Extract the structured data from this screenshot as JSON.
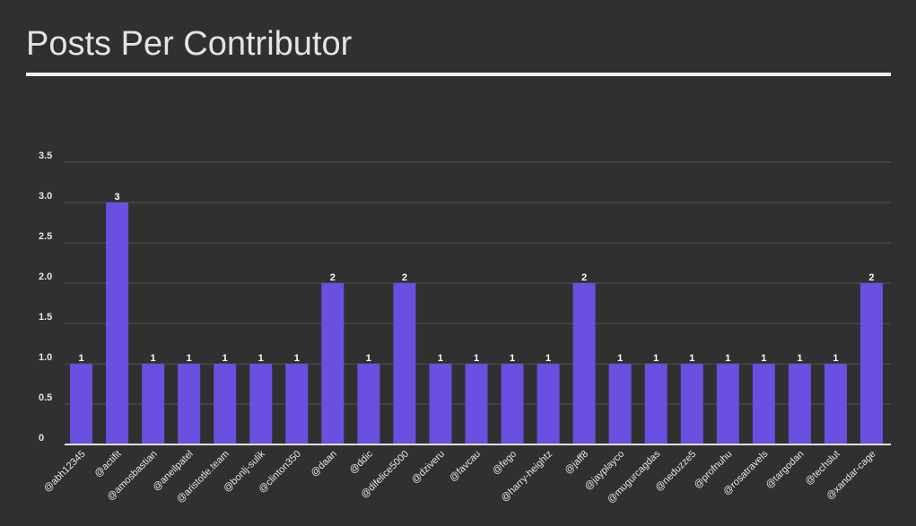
{
  "title": "Posts Per Contributor",
  "colors": {
    "background": "#303030",
    "bar": "#6a4fe0",
    "grid": "#555555",
    "text": "#e6e6e6",
    "axis": "#e0e0e0"
  },
  "chart_data": {
    "type": "bar",
    "title": "Posts Per Contributor",
    "xlabel": "",
    "ylabel": "",
    "ylim": [
      0,
      3.5
    ],
    "yticks": [
      "0",
      "0.5",
      "1.0",
      "1.5",
      "2.0",
      "2.5",
      "3.0",
      "3.5"
    ],
    "grid": true,
    "legend": "none",
    "categories": [
      "@abh12345",
      "@actifit",
      "@amosbastian",
      "@aneilpatel",
      "@aristotle.team",
      "@bonlj-sulik",
      "@clinton350",
      "@daan",
      "@ddic",
      "@difelice5000",
      "@dziveru",
      "@favcau",
      "@fego",
      "@harry-heightz",
      "@jaff8",
      "@jayplayco",
      "@mugurcagdas",
      "@neduzze5",
      "@profnuhu",
      "@rosatravels",
      "@targodan",
      "@techslut",
      "@xandar-cage"
    ],
    "values": [
      1,
      3,
      1,
      1,
      1,
      1,
      1,
      2,
      1,
      2,
      1,
      1,
      1,
      1,
      2,
      1,
      1,
      1,
      1,
      1,
      1,
      1,
      2
    ],
    "data_labels": [
      "1",
      "3",
      "1",
      "1",
      "1",
      "1",
      "1",
      "2",
      "1",
      "2",
      "1",
      "1",
      "1",
      "1",
      "2",
      "1",
      "1",
      "1",
      "1",
      "1",
      "1",
      "1",
      "2"
    ]
  }
}
